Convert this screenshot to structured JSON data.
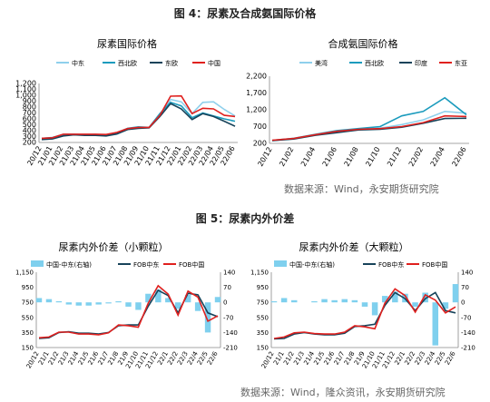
{
  "figures": [
    {
      "title": "图 4：尿素及合成氨国际价格",
      "source": "数据来源：Wind，永安期货研究院"
    },
    {
      "title": "图 5：尿素内外价差",
      "source": "数据来源：Wind，隆众资讯，永安期货研究院"
    }
  ],
  "chart_data": [
    {
      "type": "line",
      "title": "尿素国际价格",
      "x_ticks": [
        "20/12",
        "21/01",
        "21/02",
        "21/03",
        "21/04",
        "21/05",
        "21/06",
        "21/07",
        "21/08",
        "21/09",
        "21/10",
        "21/11",
        "21/12",
        "22/01",
        "22/02",
        "22/03",
        "22/04",
        "22/05",
        "22/06"
      ],
      "ylim": [
        200,
        1200
      ],
      "y_ticks": [
        "200",
        "300",
        "400",
        "500",
        "600",
        "700",
        "800",
        "900",
        "1,000",
        "1,100",
        "1,200"
      ],
      "legend_position": "top",
      "series": [
        {
          "name": "中东",
          "color": "#8fd0ec",
          "values": [
            255,
            265,
            320,
            335,
            335,
            335,
            320,
            340,
            430,
            445,
            450,
            640,
            930,
            890,
            690,
            880,
            890,
            760,
            650
          ]
        },
        {
          "name": "西北欧",
          "color": "#1b9bbd",
          "values": [
            270,
            285,
            335,
            340,
            330,
            335,
            330,
            365,
            440,
            465,
            455,
            690,
            880,
            820,
            620,
            700,
            650,
            600,
            560
          ]
        },
        {
          "name": "东欧",
          "color": "#17435a",
          "values": [
            250,
            260,
            310,
            330,
            320,
            320,
            310,
            345,
            420,
            440,
            450,
            640,
            860,
            770,
            590,
            690,
            640,
            560,
            475
          ]
        },
        {
          "name": "中国",
          "color": "#e0201e",
          "values": [
            270,
            280,
            340,
            340,
            340,
            340,
            335,
            370,
            435,
            455,
            455,
            660,
            985,
            990,
            690,
            780,
            770,
            660,
            640
          ]
        }
      ]
    },
    {
      "type": "line",
      "title": "合成氨国际价格",
      "x_ticks": [
        "20/12",
        "21/02",
        "21/04",
        "21/06",
        "21/08",
        "21/10",
        "21/12",
        "22/02",
        "22/04",
        "22/06"
      ],
      "ylim": [
        200,
        2200
      ],
      "y_ticks": [
        "200",
        "700",
        "1,200",
        "1,700",
        "2,200"
      ],
      "legend_position": "top",
      "series": [
        {
          "name": "美湾",
          "color": "#8fd0ec",
          "values": [
            280,
            340,
            450,
            550,
            620,
            650,
            760,
            900,
            1150,
            1100
          ]
        },
        {
          "name": "西北欧",
          "color": "#1b9bbd",
          "values": [
            290,
            350,
            470,
            580,
            640,
            700,
            1020,
            1150,
            1560,
            1050
          ]
        },
        {
          "name": "印度",
          "color": "#17435a",
          "values": [
            285,
            330,
            440,
            520,
            600,
            620,
            680,
            800,
            940,
            950
          ]
        },
        {
          "name": "东亚",
          "color": "#e0201e",
          "values": [
            295,
            345,
            460,
            560,
            620,
            640,
            700,
            820,
            1020,
            1000
          ]
        }
      ]
    },
    {
      "type": "line+bar",
      "title": "尿素内外价差（小颗粒）",
      "x_ticks": [
        "20/12",
        "21/1",
        "21/2",
        "21/3",
        "21/4",
        "21/5",
        "21/6",
        "21/7",
        "21/8",
        "21/9",
        "21/10",
        "21/11",
        "21/12",
        "22/1",
        "22/2",
        "22/3",
        "22/4",
        "22/5",
        "22/6"
      ],
      "ylim": [
        150,
        1150
      ],
      "y_ticks": [
        "150",
        "350",
        "550",
        "750",
        "950",
        "1,150"
      ],
      "y2lim": [
        -210,
        140
      ],
      "y2_ticks": [
        "-210",
        "-140",
        "-70",
        "0",
        "70",
        "140"
      ],
      "legend_position": "top",
      "series": [
        {
          "name": "中国-中东(右轴)",
          "type": "bar",
          "color": "#7fd0ee",
          "values": [
            20,
            15,
            5,
            -10,
            -15,
            -15,
            -10,
            -5,
            5,
            -20,
            -35,
            40,
            60,
            20,
            -30,
            35,
            -40,
            -140,
            25
          ]
        },
        {
          "name": "FOB中东",
          "color": "#17435a",
          "values": [
            270,
            280,
            350,
            360,
            340,
            340,
            330,
            350,
            440,
            450,
            450,
            700,
            910,
            840,
            610,
            870,
            850,
            610,
            560
          ]
        },
        {
          "name": "FOB中国",
          "color": "#e0201e",
          "values": [
            280,
            290,
            355,
            355,
            330,
            330,
            320,
            345,
            450,
            440,
            420,
            740,
            970,
            860,
            580,
            900,
            820,
            500,
            570
          ]
        }
      ]
    },
    {
      "type": "line+bar",
      "title": "尿素内外价差（大颗粒）",
      "x_ticks": [
        "20/12",
        "21/1",
        "21/2",
        "21/3",
        "21/4",
        "21/5",
        "21/6",
        "21/7",
        "21/8",
        "21/9",
        "21/10",
        "21/11",
        "21/12",
        "22/1",
        "22/2",
        "22/3",
        "22/4",
        "22/5",
        "22/6"
      ],
      "ylim": [
        150,
        1150
      ],
      "y_ticks": [
        "150",
        "350",
        "550",
        "750",
        "950",
        "1,150"
      ],
      "y2lim": [
        -210,
        140
      ],
      "y2_ticks": [
        "-210",
        "-140",
        "-70",
        "0",
        "70",
        "140"
      ],
      "legend_position": "top",
      "series": [
        {
          "name": "中国-中东(右轴)",
          "type": "bar",
          "color": "#7fd0ee",
          "values": [
            5,
            20,
            10,
            0,
            5,
            15,
            10,
            15,
            10,
            -20,
            -60,
            30,
            50,
            40,
            -20,
            45,
            -200,
            -30,
            85
          ]
        },
        {
          "name": "FOB中东",
          "color": "#17435a",
          "values": [
            265,
            270,
            330,
            350,
            330,
            320,
            320,
            340,
            430,
            440,
            460,
            710,
            880,
            800,
            640,
            800,
            880,
            640,
            610
          ]
        },
        {
          "name": "FOB中国",
          "color": "#e0201e",
          "values": [
            270,
            290,
            345,
            355,
            335,
            330,
            330,
            355,
            440,
            425,
            400,
            740,
            930,
            840,
            620,
            850,
            780,
            610,
            690
          ]
        }
      ]
    }
  ]
}
